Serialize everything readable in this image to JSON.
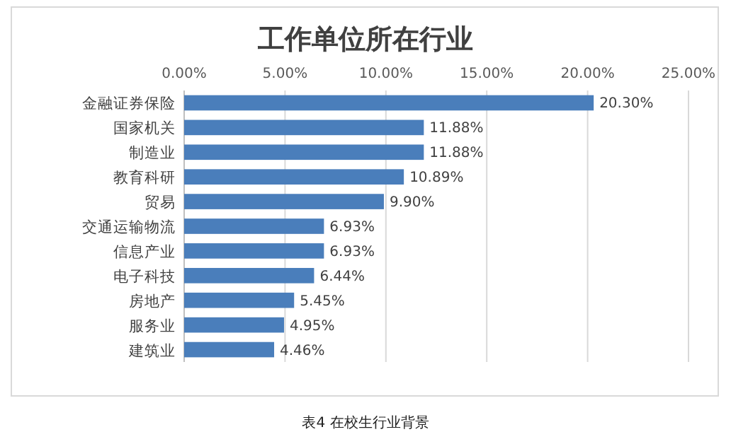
{
  "chart_data": {
    "type": "bar",
    "orientation": "horizontal",
    "title": "工作单位所在行业",
    "categories": [
      "金融证券保险",
      "国家机关",
      "制造业",
      "教育科研",
      "贸易",
      "交通运输物流",
      "信息产业",
      "电子科技",
      "房地产",
      "服务业",
      "建筑业"
    ],
    "values": [
      20.3,
      11.88,
      11.88,
      10.89,
      9.9,
      6.93,
      6.93,
      6.44,
      5.45,
      4.95,
      4.46
    ],
    "value_labels": [
      "20.30%",
      "11.88%",
      "11.88%",
      "10.89%",
      "9.90%",
      "6.93%",
      "6.93%",
      "6.44%",
      "5.45%",
      "4.95%",
      "4.46%"
    ],
    "color": "#4a7ebb",
    "xlim": [
      0,
      25
    ],
    "xticks": [
      {
        "value": 0,
        "label": "0.00%"
      },
      {
        "value": 5,
        "label": "5.00%"
      },
      {
        "value": 10,
        "label": "10.00%"
      },
      {
        "value": 15,
        "label": "15.00%"
      },
      {
        "value": 20,
        "label": "20.00%"
      },
      {
        "value": 25,
        "label": "25.00%"
      }
    ],
    "grid": "x",
    "annotations": [
      "表4  在校生行业背景"
    ]
  }
}
